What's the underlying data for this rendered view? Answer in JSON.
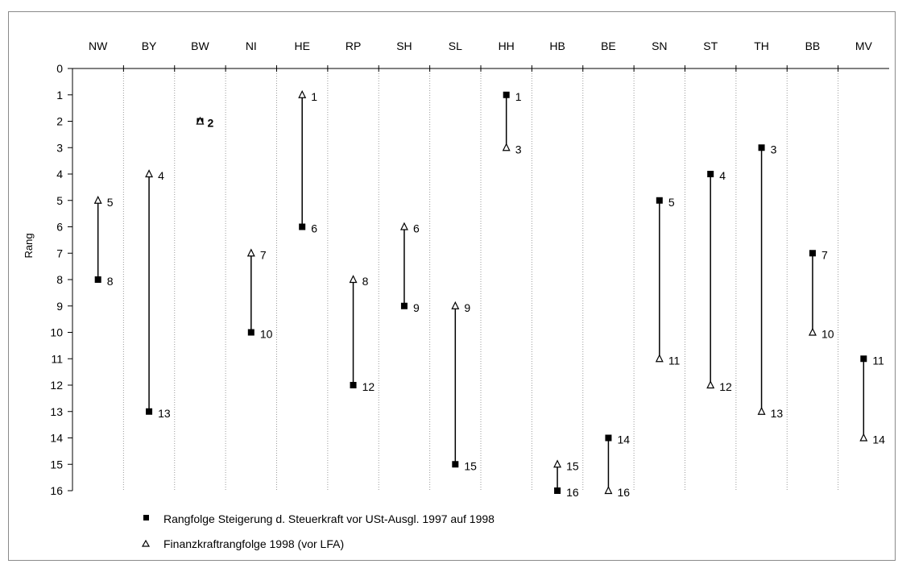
{
  "chart_data": {
    "type": "range-plot",
    "title": "",
    "xlabel": "",
    "ylabel": "Rang",
    "ylim": [
      0,
      16
    ],
    "y_inverted": true,
    "y_ticks": [
      0,
      1,
      2,
      3,
      4,
      5,
      6,
      7,
      8,
      9,
      10,
      11,
      12,
      13,
      14,
      15,
      16
    ],
    "categories": [
      "NW",
      "BY",
      "BW",
      "NI",
      "HE",
      "RP",
      "SH",
      "SL",
      "HH",
      "HB",
      "BE",
      "SN",
      "ST",
      "TH",
      "BB",
      "MV"
    ],
    "series": [
      {
        "name": "Rangfolge Steigerung d. Steuerkraft vor USt-Ausgl. 1997 auf 1998",
        "marker": "filled-square",
        "values": [
          8,
          13,
          2,
          10,
          6,
          12,
          9,
          15,
          1,
          16,
          14,
          5,
          4,
          3,
          7,
          11
        ]
      },
      {
        "name": "Finanzkraftrangfolge 1998 (vor LFA)",
        "marker": "open-triangle",
        "values": [
          5,
          4,
          2,
          7,
          1,
          8,
          6,
          9,
          3,
          15,
          16,
          11,
          12,
          13,
          10,
          14
        ]
      }
    ],
    "grid": "vertical-dotted-separators",
    "legend_position": "bottom-left"
  },
  "colors": {
    "marker": "#000000",
    "line": "#000000",
    "grid": "#9a9a9a",
    "frame": "#8a8a8a"
  }
}
